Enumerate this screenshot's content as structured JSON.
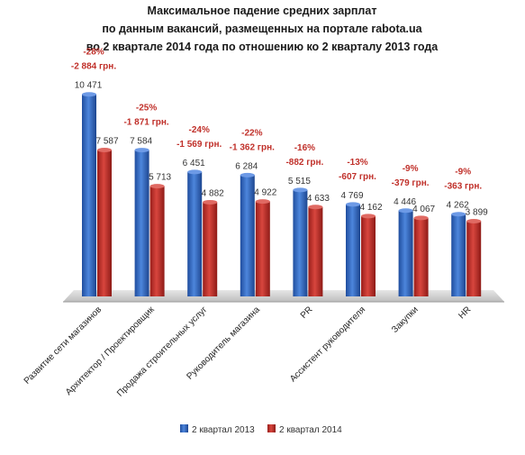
{
  "chart_data": {
    "type": "bar",
    "title_lines": [
      "Максимальное падение средних зарплат",
      "по данным вакансий, размещенных на портале rabota.ua",
      "во 2 квартале 2014 года по отношению ко 2 кварталу 2013 года"
    ],
    "categories": [
      "Развитие сети магазинов",
      "Архитектор / Проектировщик",
      "Продажа строительных услуг",
      "Руководитель магазина",
      "PR",
      "Ассистент руководителя",
      "Закупки",
      "HR"
    ],
    "series": [
      {
        "name": "2 квартал 2013",
        "color": "#3a6fc4",
        "values": [
          10471,
          7584,
          6451,
          6284,
          5515,
          4769,
          4446,
          4262
        ],
        "labels": [
          "10 471",
          "7 584",
          "6 451",
          "6 284",
          "5 515",
          "4 769",
          "4 446",
          "4 262"
        ]
      },
      {
        "name": "2 квартал 2014",
        "color": "#c0302a",
        "values": [
          7587,
          5713,
          4882,
          4922,
          4633,
          4162,
          4067,
          3899
        ],
        "labels": [
          "7 587",
          "5 713",
          "4 882",
          "4 922",
          "4 633",
          "4 162",
          "4 067",
          "3 899"
        ]
      }
    ],
    "annotations": [
      {
        "percent": "-28%",
        "diff": "-2 884 грн."
      },
      {
        "percent": "-25%",
        "diff": "-1 871 грн."
      },
      {
        "percent": "-24%",
        "diff": "-1 569 грн."
      },
      {
        "percent": "-22%",
        "diff": "-1 362 грн."
      },
      {
        "percent": "-16%",
        "diff": "-882 грн."
      },
      {
        "percent": "-13%",
        "diff": "-607 грн."
      },
      {
        "percent": "-9%",
        "diff": "-379 грн."
      },
      {
        "percent": "-9%",
        "diff": "-363 грн."
      }
    ],
    "annotation_color": "#c0302a",
    "ylim": [
      0,
      12000
    ],
    "grid": false,
    "legend": "bottom"
  }
}
